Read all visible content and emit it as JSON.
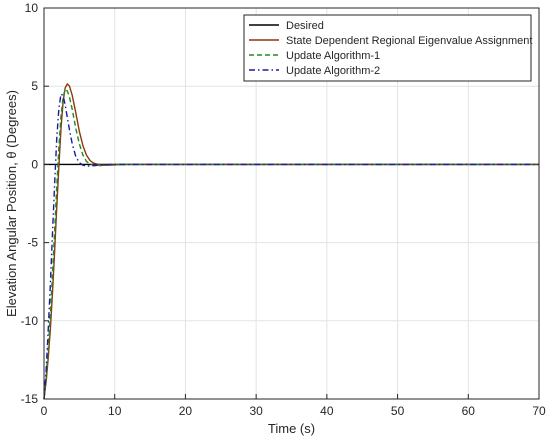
{
  "chart_data": {
    "type": "line",
    "title": "",
    "xlabel": "Time (s)",
    "ylabel": "Elevation Angular Position, θ (Degrees)",
    "xlim": [
      0,
      70
    ],
    "ylim": [
      -15,
      10
    ],
    "xticks": [
      "0",
      "10",
      "20",
      "30",
      "40",
      "50",
      "60",
      "70"
    ],
    "yticks": [
      "-15",
      "-10",
      "-5",
      "0",
      "5",
      "10"
    ],
    "grid": true,
    "legend_position": "top-right",
    "series": [
      {
        "name": "Desired",
        "color": "#000000",
        "dash": "solid",
        "x": [
          0,
          70
        ],
        "y": [
          0,
          0
        ]
      },
      {
        "name": "State Dependent Regional Eigenvalue Assignment",
        "color": "#8b3a0e",
        "dash": "solid",
        "x": [
          0,
          0.3,
          0.6,
          0.9,
          1.2,
          1.5,
          1.8,
          2.1,
          2.4,
          2.7,
          3.0,
          3.3,
          3.6,
          4.0,
          4.5,
          5.0,
          5.5,
          6.0,
          6.5,
          7.0,
          7.5,
          8.0,
          8.5,
          9.0,
          9.5,
          10.0,
          10.5,
          11.0,
          12.0,
          13.0,
          15.0,
          70.0
        ],
        "y": [
          -15,
          -13.9,
          -12.4,
          -10.5,
          -8.2,
          -5.6,
          -2.8,
          -0.1,
          2.3,
          4.0,
          4.9,
          5.15,
          5.0,
          4.4,
          3.3,
          2.1,
          1.2,
          0.6,
          0.25,
          0.08,
          0.02,
          -0.03,
          -0.05,
          -0.05,
          -0.04,
          -0.03,
          -0.02,
          -0.01,
          0,
          0,
          0,
          0
        ]
      },
      {
        "name": "Update Algorithm-1",
        "color": "#1f8a1f",
        "dash": "dashed",
        "x": [
          0,
          0.3,
          0.6,
          0.9,
          1.2,
          1.5,
          1.8,
          2.1,
          2.4,
          2.7,
          3.0,
          3.3,
          3.6,
          4.0,
          4.5,
          5.0,
          5.5,
          6.0,
          6.5,
          7.0,
          7.5,
          8.0,
          8.5,
          9.0,
          9.5,
          10.0,
          10.5,
          11.0,
          12.0,
          13.0,
          15.0,
          70.0
        ],
        "y": [
          -15,
          -13.6,
          -11.8,
          -9.6,
          -7.0,
          -4.3,
          -1.5,
          1.1,
          3.1,
          4.3,
          4.8,
          4.7,
          4.3,
          3.5,
          2.3,
          1.3,
          0.6,
          0.2,
          0.02,
          -0.06,
          -0.08,
          -0.07,
          -0.05,
          -0.03,
          -0.02,
          -0.01,
          0,
          0,
          0,
          0,
          0,
          0
        ]
      },
      {
        "name": "Update Algorithm-2",
        "color": "#1a1aa6",
        "dash": "dashdot",
        "x": [
          0,
          0.3,
          0.6,
          0.9,
          1.2,
          1.5,
          1.8,
          2.1,
          2.4,
          2.7,
          3.0,
          3.3,
          3.6,
          4.0,
          4.5,
          5.0,
          5.5,
          6.0,
          6.5,
          7.0,
          7.5,
          8.0,
          8.5,
          9.0,
          9.5,
          10.0,
          10.5,
          11.0,
          12.0,
          13.0,
          15.0,
          70.0
        ],
        "y": [
          -15,
          -13.2,
          -10.6,
          -7.6,
          -4.4,
          -1.3,
          1.6,
          3.6,
          4.5,
          4.4,
          3.8,
          3.0,
          2.2,
          1.3,
          0.5,
          0.1,
          -0.05,
          -0.1,
          -0.1,
          -0.08,
          -0.06,
          -0.04,
          -0.02,
          -0.01,
          0,
          0,
          0,
          0,
          0,
          0,
          0,
          0
        ]
      }
    ]
  }
}
